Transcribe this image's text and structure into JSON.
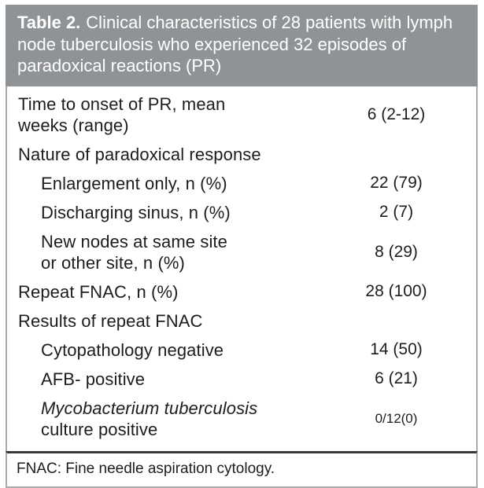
{
  "colors": {
    "header_bg": "#909396",
    "header_text": "#ffffff",
    "body_text": "#1d1d1f",
    "border_gray": "#a9abad",
    "separator_dark": "#38383a",
    "page_bg": "#ffffff"
  },
  "header": {
    "title_label": "Table 2.",
    "title_text": "Clinical characteristics of 28 patients with lymph node tuberculosis who experienced 32 episodes of paradoxical reactions (PR)"
  },
  "table": {
    "rows": [
      {
        "lines": [
          "Time to onset of PR, mean",
          "weeks (range)"
        ],
        "value": "6 (2-12)",
        "indent": false
      },
      {
        "lines": [
          "Nature of paradoxical response"
        ],
        "value": "",
        "indent": false
      },
      {
        "lines": [
          "Enlargement only, n (%)"
        ],
        "value": "22 (79)",
        "indent": true
      },
      {
        "lines": [
          "Discharging sinus, n (%)"
        ],
        "value": "2 (7)",
        "indent": true
      },
      {
        "lines": [
          "New nodes at same site",
          "or other site, n (%)"
        ],
        "value": "8 (29)",
        "indent": true
      },
      {
        "lines": [
          "Repeat FNAC, n (%)"
        ],
        "value": "28 (100)",
        "indent": false
      },
      {
        "lines": [
          "Results of repeat FNAC"
        ],
        "value": "",
        "indent": false
      },
      {
        "lines": [
          "Cytopathology negative"
        ],
        "value": "14 (50)",
        "indent": true
      },
      {
        "lines": [
          "AFB- positive"
        ],
        "value": "6 (21)",
        "indent": true
      },
      {
        "lines": [
          {
            "text": "Mycobacterium tuberculosis",
            "italic": true
          },
          {
            "text": "culture positive",
            "italic": false
          }
        ],
        "value": "0/12(0)",
        "indent": true,
        "value_small": true
      }
    ],
    "footnote": "FNAC: Fine needle aspiration cytology."
  }
}
